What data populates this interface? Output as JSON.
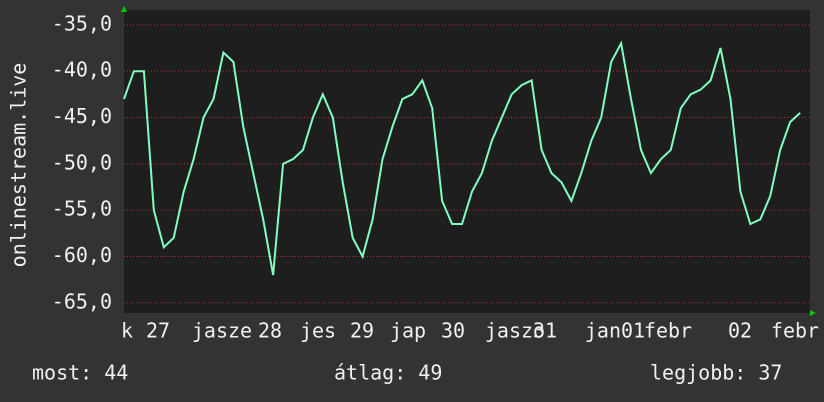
{
  "chart_data": {
    "type": "line",
    "y_label": "onlinestream.live",
    "values": [
      -43,
      -40,
      -40,
      -55,
      -59,
      -58,
      -53,
      -49.5,
      -45,
      -43,
      -38,
      -39,
      -46,
      -51,
      -56,
      -62,
      -50,
      -49.5,
      -48.5,
      -45,
      -42.5,
      -45,
      -52,
      -58,
      -60,
      -56,
      -49.5,
      -46,
      -43,
      -42.5,
      -41,
      -44,
      -54,
      -56.5,
      -56.5,
      -53,
      -51,
      -47.5,
      -45,
      -42.5,
      -41.5,
      -41,
      -48.5,
      -51,
      -52,
      -54,
      -51,
      -47.5,
      -45,
      -39,
      -37,
      -43,
      -48.5,
      -51,
      -49.5,
      -48.5,
      -44,
      -42.5,
      -42,
      -41,
      -37.5,
      -43,
      -53,
      -56.5,
      -56,
      -53.5,
      -48.5,
      -45.5,
      -44.5
    ],
    "color": "#7fffc0",
    "xlim": [
      0,
      68.6
    ],
    "xticks": [
      {
        "value": 0.3,
        "label": "k"
      },
      {
        "value": 3.4,
        "label": "27"
      },
      {
        "value": 9.8,
        "label": "jasze"
      },
      {
        "value": 14.6,
        "label": "28"
      },
      {
        "value": 19.4,
        "label": "jes"
      },
      {
        "value": 23.8,
        "label": "29"
      },
      {
        "value": 28.4,
        "label": "jap"
      },
      {
        "value": 32.9,
        "label": "30"
      },
      {
        "value": 39.1,
        "label": "jaszo"
      },
      {
        "value": 42.1,
        "label": "31"
      },
      {
        "value": 49.1,
        "label": "jan01"
      },
      {
        "value": 54.4,
        "label": "febr"
      },
      {
        "value": 61.6,
        "label": "02"
      },
      {
        "value": 67.1,
        "label": "febr"
      }
    ],
    "ylim": [
      -66.1,
      -33.4
    ],
    "yticks": [
      {
        "value": -35,
        "label": "-35,0"
      },
      {
        "value": -40,
        "label": "-40,0"
      },
      {
        "value": -45,
        "label": "-45,0"
      },
      {
        "value": -50,
        "label": "-50,0"
      },
      {
        "value": -55,
        "label": "-55,0"
      },
      {
        "value": -60,
        "label": "-60,0"
      },
      {
        "value": -65,
        "label": "-65,0"
      }
    ],
    "grid": true,
    "footer": {
      "current": "most: 44",
      "average": "átlag: 49",
      "best": "legjobb: 37"
    }
  }
}
